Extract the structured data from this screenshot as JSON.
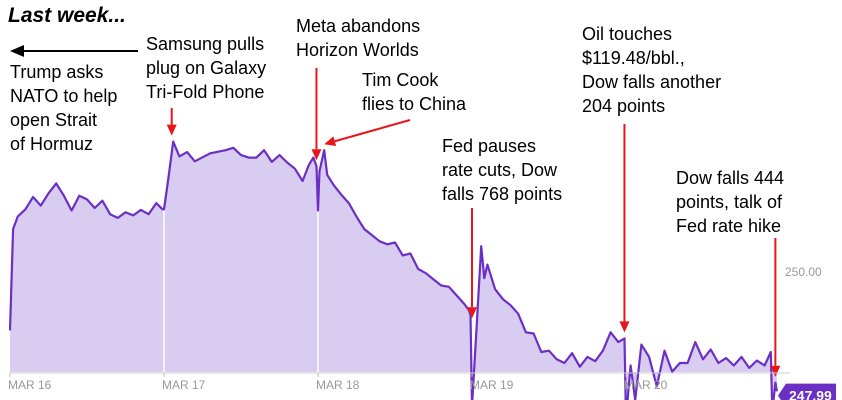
{
  "title": "Last week...",
  "colors": {
    "line": "#6b2fc4",
    "fill": "#d9ccf1",
    "marker": "#e8161b",
    "axis": "#999999",
    "badge": "#6b2fc4"
  },
  "chart_data": {
    "type": "line",
    "ylabel": "",
    "y_reference": 250.0,
    "y_reference_label": "250.00",
    "current_value": 247.99,
    "current_label": "247.99",
    "ylim": [
      246,
      253
    ],
    "xlim": [
      0,
      4.98
    ],
    "x_ticks": [
      {
        "x": 0,
        "label": "MAR 16"
      },
      {
        "x": 1,
        "label": "MAR 17"
      },
      {
        "x": 2,
        "label": "MAR 18"
      },
      {
        "x": 3,
        "label": "MAR 19"
      },
      {
        "x": 4,
        "label": "MAR 20"
      }
    ],
    "series": [
      {
        "name": "price",
        "points": [
          [
            0.0,
            249.05
          ],
          [
            0.02,
            250.7
          ],
          [
            0.05,
            250.9
          ],
          [
            0.1,
            251.02
          ],
          [
            0.15,
            251.22
          ],
          [
            0.2,
            251.08
          ],
          [
            0.25,
            251.28
          ],
          [
            0.3,
            251.44
          ],
          [
            0.35,
            251.24
          ],
          [
            0.4,
            251.0
          ],
          [
            0.45,
            251.24
          ],
          [
            0.5,
            251.18
          ],
          [
            0.55,
            251.04
          ],
          [
            0.6,
            251.16
          ],
          [
            0.65,
            250.94
          ],
          [
            0.7,
            250.88
          ],
          [
            0.75,
            250.97
          ],
          [
            0.8,
            250.92
          ],
          [
            0.85,
            251.01
          ],
          [
            0.9,
            250.94
          ],
          [
            0.95,
            251.12
          ],
          [
            0.99,
            251.02
          ],
          [
            1.0,
            251.02
          ],
          [
            1.03,
            251.55
          ],
          [
            1.06,
            252.12
          ],
          [
            1.1,
            251.88
          ],
          [
            1.15,
            251.95
          ],
          [
            1.2,
            251.8
          ],
          [
            1.3,
            251.93
          ],
          [
            1.4,
            251.98
          ],
          [
            1.45,
            252.02
          ],
          [
            1.5,
            251.9
          ],
          [
            1.55,
            251.86
          ],
          [
            1.6,
            251.86
          ],
          [
            1.65,
            251.98
          ],
          [
            1.7,
            251.79
          ],
          [
            1.75,
            251.9
          ],
          [
            1.8,
            251.78
          ],
          [
            1.85,
            251.68
          ],
          [
            1.9,
            251.48
          ],
          [
            1.94,
            251.74
          ],
          [
            1.97,
            251.86
          ],
          [
            1.99,
            251.72
          ],
          [
            2.0,
            251.0
          ],
          [
            2.01,
            251.64
          ],
          [
            2.04,
            251.98
          ],
          [
            2.06,
            251.58
          ],
          [
            2.1,
            251.42
          ],
          [
            2.15,
            251.26
          ],
          [
            2.2,
            251.12
          ],
          [
            2.25,
            250.9
          ],
          [
            2.3,
            250.7
          ],
          [
            2.35,
            250.6
          ],
          [
            2.4,
            250.5
          ],
          [
            2.45,
            250.45
          ],
          [
            2.5,
            250.48
          ],
          [
            2.55,
            250.27
          ],
          [
            2.6,
            250.3
          ],
          [
            2.65,
            250.05
          ],
          [
            2.7,
            249.98
          ],
          [
            2.75,
            249.88
          ],
          [
            2.8,
            249.78
          ],
          [
            2.85,
            249.76
          ],
          [
            2.9,
            249.62
          ],
          [
            2.95,
            249.48
          ],
          [
            2.98,
            249.38
          ],
          [
            2.99,
            249.3
          ],
          [
            3.0,
            247.82
          ],
          [
            3.03,
            249.1
          ],
          [
            3.06,
            250.42
          ],
          [
            3.08,
            249.9
          ],
          [
            3.1,
            250.12
          ],
          [
            3.15,
            249.72
          ],
          [
            3.2,
            249.56
          ],
          [
            3.25,
            249.46
          ],
          [
            3.3,
            249.32
          ],
          [
            3.35,
            249.02
          ],
          [
            3.4,
            249.0
          ],
          [
            3.45,
            248.7
          ],
          [
            3.5,
            248.72
          ],
          [
            3.55,
            248.58
          ],
          [
            3.6,
            248.52
          ],
          [
            3.65,
            248.68
          ],
          [
            3.7,
            248.46
          ],
          [
            3.75,
            248.62
          ],
          [
            3.8,
            248.55
          ],
          [
            3.85,
            248.72
          ],
          [
            3.9,
            249.02
          ],
          [
            3.95,
            248.86
          ],
          [
            3.99,
            248.92
          ],
          [
            4.0,
            247.62
          ],
          [
            4.03,
            248.48
          ],
          [
            4.06,
            247.92
          ],
          [
            4.1,
            248.82
          ],
          [
            4.15,
            248.62
          ],
          [
            4.2,
            248.14
          ],
          [
            4.25,
            248.72
          ],
          [
            4.3,
            248.38
          ],
          [
            4.35,
            248.52
          ],
          [
            4.4,
            248.52
          ],
          [
            4.45,
            248.86
          ],
          [
            4.5,
            248.58
          ],
          [
            4.55,
            248.74
          ],
          [
            4.6,
            248.52
          ],
          [
            4.65,
            248.6
          ],
          [
            4.7,
            248.48
          ],
          [
            4.75,
            248.62
          ],
          [
            4.8,
            248.44
          ],
          [
            4.85,
            248.56
          ],
          [
            4.9,
            248.48
          ],
          [
            4.94,
            248.7
          ],
          [
            4.95,
            247.74
          ],
          [
            4.97,
            248.2
          ],
          [
            4.98,
            248.06
          ]
        ]
      }
    ],
    "annotations": [
      {
        "id": "samsung",
        "text": "Samsung pulls plug on Galaxy Tri-Fold Phone",
        "target_x": 1.05,
        "target_y": 252.12
      },
      {
        "id": "meta",
        "text": "Meta abandons Horizon Worlds",
        "target_x": 1.99,
        "target_y": 251.72
      },
      {
        "id": "cook",
        "text": "Tim Cook flies to China",
        "target_x": 2.04,
        "target_y": 251.98
      },
      {
        "id": "fed",
        "text": "Fed pauses rate cuts, Dow falls 768 points",
        "target_x": 3.0,
        "target_y": 249.15
      },
      {
        "id": "oil",
        "text": "Oil touches $119.48/bbl., Dow falls another 204 points",
        "target_x": 3.99,
        "target_y": 248.92
      },
      {
        "id": "dow444",
        "text": "Dow falls 444 points, talk of Fed rate hike",
        "target_x": 4.97,
        "target_y": 248.2
      }
    ]
  },
  "notes": {
    "trump": "Trump asks\nNATO to help\nopen Strait\nof Hormuz",
    "samsung": "Samsung pulls\nplug on Galaxy\nTri-Fold Phone",
    "meta": "Meta abandons\nHorizon Worlds",
    "cook": "Tim Cook\nflies to China",
    "fed": "Fed pauses\nrate cuts, Dow\nfalls 768 points",
    "oil": "Oil touches\n$119.48/bbl.,\nDow falls another\n204 points",
    "dow444": "Dow falls 444\npoints, talk of\nFed rate hike"
  }
}
